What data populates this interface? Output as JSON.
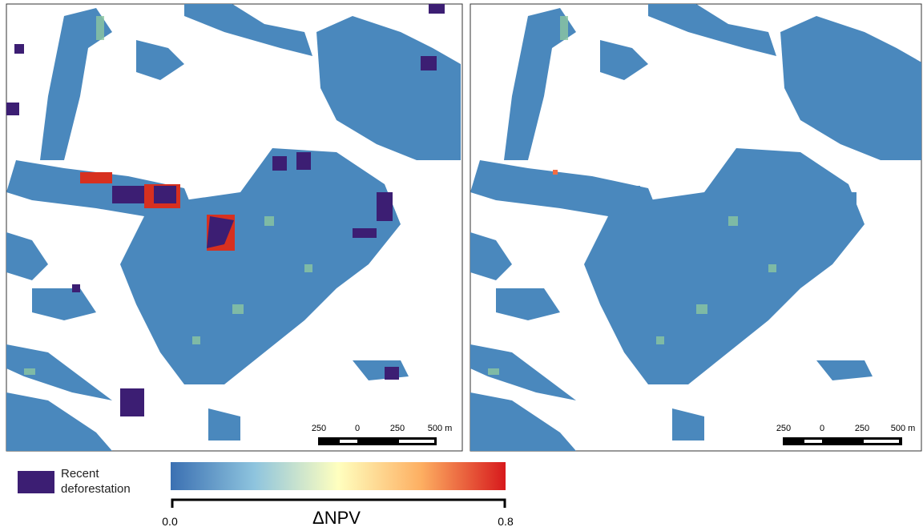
{
  "panels": [
    {
      "scale_bar": {
        "labels": [
          "250",
          "0",
          "250",
          "500 m"
        ]
      }
    },
    {
      "scale_bar": {
        "labels": [
          "250",
          "0",
          "250",
          "500 m"
        ]
      }
    }
  ],
  "legend": {
    "label": "Recent deforestation"
  },
  "colorbar": {
    "title": "ΔNPV",
    "min_label": "0.0",
    "max_label": "0.8"
  }
}
